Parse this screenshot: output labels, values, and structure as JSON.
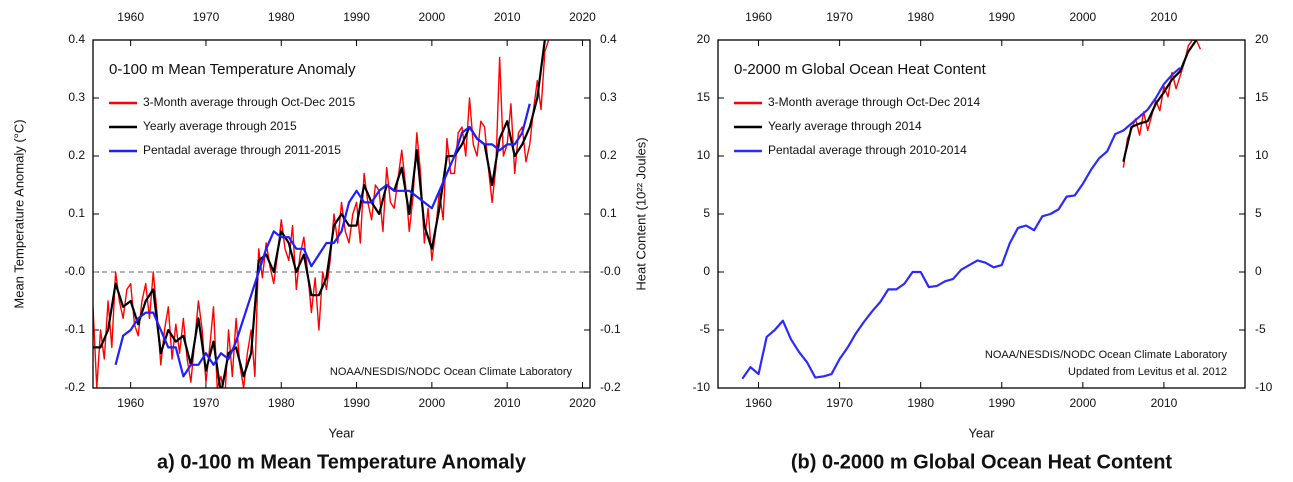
{
  "chart_data": [
    {
      "type": "line",
      "title": "0-100 m Mean Temperature Anomaly",
      "caption": "a) 0-100 m Mean Temperature Anomaly",
      "xlabel": "Year",
      "ylabel": "Mean Temperature Anomaly (°C)",
      "y2label": "Heat Content (10²² Joules)",
      "xlim": [
        1955,
        2021
      ],
      "ylim": [
        -0.2,
        0.4
      ],
      "xticks": [
        1960,
        1970,
        1980,
        1990,
        2000,
        2010,
        2020
      ],
      "yticks": [
        0.4,
        0.3,
        0.2,
        0.1,
        {
          "value": 0,
          "label": "-0.0"
        },
        -0.1,
        -0.2
      ],
      "zero_line": true,
      "annotations": [
        "NOAA/NESDIS/NODC Ocean Climate Laboratory"
      ],
      "series": [
        {
          "name": "3-Month average through Oct-Dec 2015",
          "color": "#ff0000",
          "x": [
            1955,
            1955.5,
            1956,
            1956.5,
            1957,
            1957.5,
            1958,
            1958.5,
            1959,
            1959.5,
            1960,
            1960.5,
            1961,
            1961.5,
            1962,
            1962.5,
            1963,
            1963.5,
            1964,
            1964.5,
            1965,
            1965.5,
            1966,
            1966.5,
            1967,
            1967.5,
            1968,
            1968.5,
            1969,
            1969.5,
            1970,
            1970.5,
            1971,
            1971.5,
            1972,
            1972.5,
            1973,
            1973.5,
            1974,
            1974.5,
            1975,
            1975.5,
            1976,
            1976.5,
            1977,
            1977.5,
            1978,
            1978.5,
            1979,
            1979.5,
            1980,
            1980.5,
            1981,
            1981.5,
            1982,
            1982.5,
            1983,
            1983.5,
            1984,
            1984.5,
            1985,
            1985.5,
            1986,
            1986.5,
            1987,
            1987.5,
            1988,
            1988.5,
            1989,
            1989.5,
            1990,
            1990.5,
            1991,
            1991.5,
            1992,
            1992.5,
            1993,
            1993.5,
            1994,
            1994.5,
            1995,
            1995.5,
            1996,
            1996.5,
            1997,
            1997.5,
            1998,
            1998.5,
            1999,
            1999.5,
            2000,
            2000.5,
            2001,
            2001.5,
            2002,
            2002.5,
            2003,
            2003.5,
            2004,
            2004.5,
            2005,
            2005.5,
            2006,
            2006.5,
            2007,
            2007.5,
            2008,
            2008.5,
            2009,
            2009.5,
            2010,
            2010.5,
            2011,
            2011.5,
            2012,
            2012.5,
            2013,
            2013.5,
            2014,
            2014.5,
            2015,
            2015.5
          ],
          "values": [
            -0.06,
            -0.2,
            -0.1,
            -0.15,
            -0.05,
            -0.13,
            0,
            -0.05,
            -0.08,
            -0.03,
            -0.02,
            -0.09,
            -0.11,
            -0.05,
            -0.02,
            -0.08,
            0,
            -0.07,
            -0.16,
            -0.1,
            -0.06,
            -0.15,
            -0.09,
            -0.14,
            -0.08,
            -0.15,
            -0.19,
            -0.12,
            -0.05,
            -0.1,
            -0.19,
            -0.13,
            -0.06,
            -0.2,
            -0.18,
            -0.22,
            -0.1,
            -0.18,
            -0.08,
            -0.16,
            -0.2,
            -0.14,
            -0.1,
            -0.18,
            0.04,
            -0.01,
            0.05,
            0.01,
            -0.02,
            0.03,
            0.09,
            0.04,
            0.02,
            0.08,
            -0.03,
            0.03,
            0.06,
            0,
            -0.07,
            -0.01,
            -0.1,
            0,
            -0.03,
            0.02,
            0.1,
            0.05,
            0.12,
            0.07,
            0.05,
            0.1,
            0.12,
            0.05,
            0.17,
            0.12,
            0.09,
            0.15,
            0.14,
            0.07,
            0.18,
            0.12,
            0.11,
            0.16,
            0.21,
            0.15,
            0.07,
            0.13,
            0.24,
            0.17,
            0.05,
            0.11,
            0.02,
            0.07,
            0.14,
            0.09,
            0.23,
            0.17,
            0.17,
            0.24,
            0.25,
            0.2,
            0.3,
            0.22,
            0.2,
            0.26,
            0.25,
            0.18,
            0.12,
            0.18,
            0.37,
            0.2,
            0.22,
            0.29,
            0.17,
            0.24,
            0.25,
            0.19,
            0.22,
            0.28,
            0.33,
            0.28,
            0.38,
            0.4
          ]
        },
        {
          "name": "Yearly average through 2015",
          "color": "#000000",
          "x": [
            1955,
            1956,
            1957,
            1958,
            1959,
            1960,
            1961,
            1962,
            1963,
            1964,
            1965,
            1966,
            1967,
            1968,
            1969,
            1970,
            1971,
            1972,
            1973,
            1974,
            1975,
            1976,
            1977,
            1978,
            1979,
            1980,
            1981,
            1982,
            1983,
            1984,
            1985,
            1986,
            1987,
            1988,
            1989,
            1990,
            1991,
            1992,
            1993,
            1994,
            1995,
            1996,
            1997,
            1998,
            1999,
            2000,
            2001,
            2002,
            2003,
            2004,
            2005,
            2006,
            2007,
            2008,
            2009,
            2010,
            2011,
            2012,
            2013,
            2014,
            2015
          ],
          "values": [
            -0.13,
            -0.13,
            -0.1,
            -0.02,
            -0.06,
            -0.05,
            -0.09,
            -0.05,
            -0.03,
            -0.14,
            -0.1,
            -0.12,
            -0.11,
            -0.16,
            -0.08,
            -0.17,
            -0.12,
            -0.21,
            -0.14,
            -0.13,
            -0.18,
            -0.14,
            0.02,
            0.03,
            0,
            0.07,
            0.05,
            0,
            0.03,
            -0.04,
            -0.04,
            -0.01,
            0.08,
            0.1,
            0.08,
            0.08,
            0.15,
            0.12,
            0.1,
            0.15,
            0.14,
            0.18,
            0.1,
            0.21,
            0.08,
            0.04,
            0.11,
            0.2,
            0.2,
            0.22,
            0.25,
            0.23,
            0.22,
            0.15,
            0.23,
            0.26,
            0.2,
            0.22,
            0.25,
            0.3,
            0.4
          ]
        },
        {
          "name": "Pentadal average through 2011-2015",
          "color": "#1f1fff",
          "x": [
            1958,
            1959,
            1960,
            1961,
            1962,
            1963,
            1964,
            1965,
            1966,
            1967,
            1968,
            1969,
            1970,
            1971,
            1972,
            1973,
            1974,
            1975,
            1976,
            1977,
            1978,
            1979,
            1980,
            1981,
            1982,
            1983,
            1984,
            1985,
            1986,
            1987,
            1988,
            1989,
            1990,
            1991,
            1992,
            1993,
            1994,
            1995,
            1996,
            1997,
            1998,
            1999,
            2000,
            2001,
            2002,
            2003,
            2004,
            2005,
            2006,
            2007,
            2008,
            2009,
            2010,
            2011,
            2012,
            2013
          ],
          "values": [
            -0.16,
            -0.11,
            -0.1,
            -0.08,
            -0.07,
            -0.07,
            -0.1,
            -0.13,
            -0.13,
            -0.18,
            -0.16,
            -0.16,
            -0.14,
            -0.16,
            -0.14,
            -0.15,
            -0.12,
            -0.08,
            -0.04,
            0,
            0.04,
            0.07,
            0.06,
            0.06,
            0.04,
            0.04,
            0.01,
            0.03,
            0.05,
            0.05,
            0.07,
            0.12,
            0.14,
            0.12,
            0.12,
            0.14,
            0.15,
            0.14,
            0.14,
            0.14,
            0.13,
            0.12,
            0.11,
            0.14,
            0.17,
            0.2,
            0.24,
            0.25,
            0.23,
            0.22,
            0.22,
            0.21,
            0.22,
            0.22,
            0.24,
            0.29
          ]
        }
      ]
    },
    {
      "type": "line",
      "title": "0-2000 m Global Ocean Heat Content",
      "caption": "(b) 0-2000 m Global Ocean Heat Content",
      "xlabel": "Year",
      "xlim": [
        1955,
        2020
      ],
      "ylim": [
        -10,
        20
      ],
      "xticks": [
        1960,
        1970,
        1980,
        1990,
        2000,
        2010
      ],
      "yticks": [
        20,
        15,
        10,
        5,
        0,
        -5,
        -10
      ],
      "annotations": [
        "NOAA/NESDIS/NODC Ocean Climate Laboratory",
        "Updated from Levitus et al. 2012"
      ],
      "series": [
        {
          "name": "3-Month average through Oct-Dec 2014",
          "color": "#ff0000",
          "x": [
            2005,
            2005.5,
            2006,
            2006.5,
            2007,
            2007.5,
            2008,
            2008.5,
            2009,
            2009.5,
            2010,
            2010.5,
            2011,
            2011.5,
            2012,
            2012.5,
            2013,
            2013.5,
            2014,
            2014.5
          ],
          "values": [
            9,
            11.5,
            12.3,
            13.2,
            11.8,
            13.8,
            12.2,
            13.5,
            14.8,
            13.9,
            16,
            15.1,
            17.2,
            15.8,
            16.9,
            18,
            19.5,
            20,
            20,
            19.2
          ]
        },
        {
          "name": "Yearly average through 2014",
          "color": "#000000",
          "x": [
            2005,
            2006,
            2007,
            2008,
            2009,
            2010,
            2011,
            2012,
            2013,
            2014
          ],
          "values": [
            9.5,
            12.5,
            12.8,
            13,
            14.5,
            15.5,
            16.6,
            17.3,
            19,
            20
          ]
        },
        {
          "name": "Pentadal average through 2010-2014",
          "color": "#2b2bff",
          "x": [
            1958,
            1959,
            1960,
            1961,
            1962,
            1963,
            1964,
            1965,
            1966,
            1967,
            1968,
            1969,
            1970,
            1971,
            1972,
            1973,
            1974,
            1975,
            1976,
            1977,
            1978,
            1979,
            1980,
            1981,
            1982,
            1983,
            1984,
            1985,
            1986,
            1987,
            1988,
            1989,
            1990,
            1991,
            1992,
            1993,
            1994,
            1995,
            1996,
            1997,
            1998,
            1999,
            2000,
            2001,
            2002,
            2003,
            2004,
            2005,
            2006,
            2007,
            2008,
            2009,
            2010,
            2011,
            2012
          ],
          "values": [
            -9.2,
            -8.2,
            -8.8,
            -5.6,
            -5,
            -4.2,
            -5.8,
            -6.9,
            -7.8,
            -9.1,
            -9,
            -8.8,
            -7.5,
            -6.5,
            -5.3,
            -4.3,
            -3.4,
            -2.6,
            -1.5,
            -1.5,
            -1,
            0,
            0,
            -1.3,
            -1.2,
            -0.8,
            -0.6,
            0.2,
            0.6,
            1,
            0.8,
            0.4,
            0.6,
            2.5,
            3.8,
            4,
            3.6,
            4.8,
            5,
            5.4,
            6.5,
            6.6,
            7.6,
            8.8,
            9.8,
            10.4,
            11.9,
            12.2,
            12.8,
            13.4,
            14,
            15,
            16.2,
            17,
            17.6
          ]
        }
      ]
    }
  ]
}
